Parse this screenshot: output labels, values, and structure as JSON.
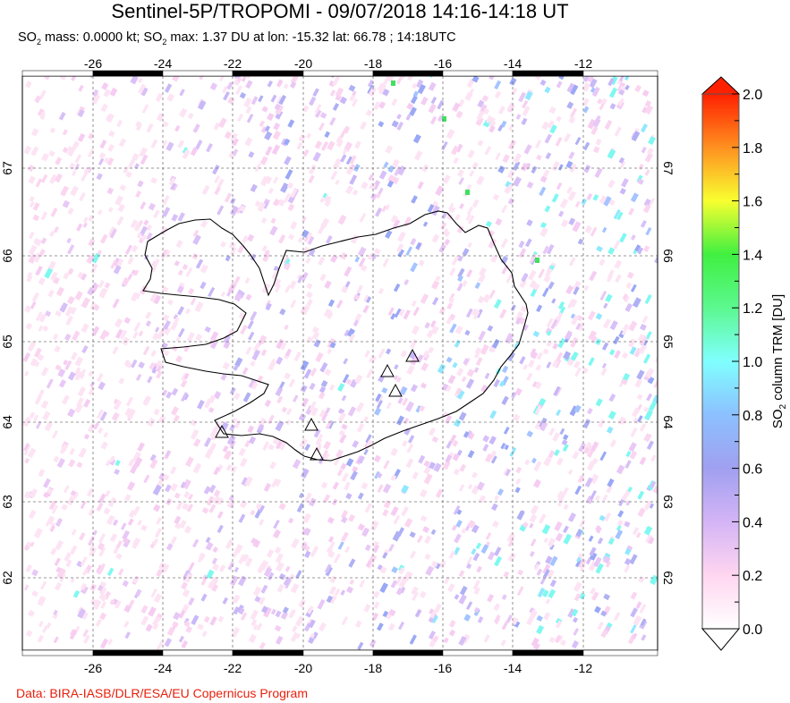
{
  "header": {
    "title": "Sentinel-5P/TROPOMI - 09/07/2018 14:16-14:18 UT",
    "subtitle_parts": {
      "so": "SO",
      "sub": "2",
      "mass": " mass: 0.0000 kt; ",
      "so2": "SO",
      "sub2": "2",
      "max": " max: 1.37 DU at lon: -15.32 lat: 66.78 ; 14:18UTC"
    }
  },
  "map": {
    "lon_ticks": [
      "-26",
      "-24",
      "-22",
      "-20",
      "-18",
      "-16",
      "-14",
      "-12"
    ],
    "lat_ticks": [
      "67",
      "66",
      "65",
      "64",
      "63",
      "62"
    ],
    "region": "Iceland",
    "volcano_markers": 6,
    "max_location": {
      "lon": -15.32,
      "lat": 66.78,
      "value_du": 1.37
    }
  },
  "colorbar": {
    "ticks": [
      "2.0",
      "1.8",
      "1.6",
      "1.4",
      "1.2",
      "1.0",
      "0.8",
      "0.6",
      "0.4",
      "0.2",
      "0.0"
    ],
    "label_main": "SO",
    "label_sub": "2",
    "label_rest": " column TRM [DU]",
    "range": [
      0.0,
      2.0
    ],
    "colors": [
      "#ffffff",
      "#ffd6f0",
      "#d4b4f6",
      "#a0a0f0",
      "#8cc0ff",
      "#80ffff",
      "#5cf890",
      "#40f040",
      "#f8ff30",
      "#ff9020",
      "#ff2000"
    ]
  },
  "footer": {
    "credit": "Data: BIRA-IASB/DLR/ESA/EU Copernicus Program"
  }
}
